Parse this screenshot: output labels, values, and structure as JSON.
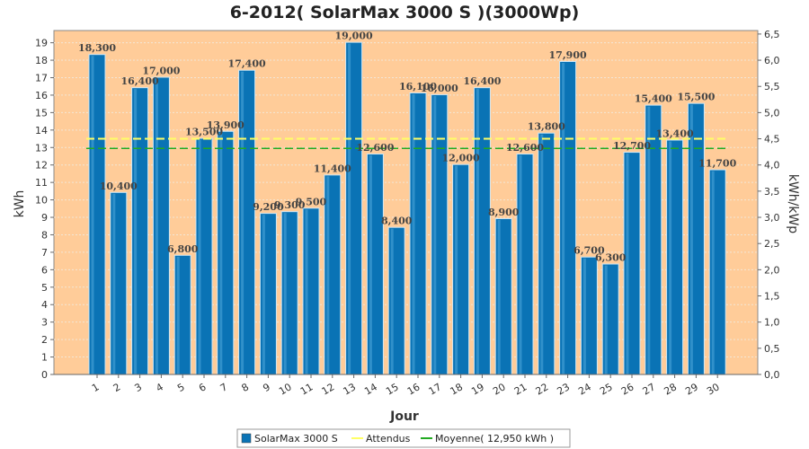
{
  "chart_data": {
    "type": "bar",
    "title": "6-2012( SolarMax 3000 S )(3000Wp)",
    "xlabel": "Jour",
    "ylabel": "kWh",
    "y2label": "kWh/kWp",
    "ylim": [
      0,
      19.7
    ],
    "y2lim": [
      0,
      6.5667
    ],
    "yticks": [
      0,
      1,
      2,
      3,
      4,
      5,
      6,
      7,
      8,
      9,
      10,
      11,
      12,
      13,
      14,
      15,
      16,
      17,
      18,
      19
    ],
    "y2ticks": [
      "0,0",
      "0,5",
      "1,0",
      "1,5",
      "2,0",
      "2,5",
      "3,0",
      "3,5",
      "4,0",
      "4,5",
      "5,0",
      "5,5",
      "6,0",
      "6,5"
    ],
    "categories": [
      "1",
      "2",
      "3",
      "4",
      "5",
      "6",
      "7",
      "8",
      "9",
      "10",
      "11",
      "12",
      "13",
      "14",
      "15",
      "16",
      "17",
      "18",
      "19",
      "20",
      "21",
      "22",
      "23",
      "24",
      "25",
      "26",
      "27",
      "28",
      "29",
      "30"
    ],
    "series": [
      {
        "name": "SolarMax 3000 S",
        "values": [
          18.3,
          10.4,
          16.4,
          17.0,
          6.8,
          13.5,
          13.9,
          17.4,
          9.2,
          9.3,
          9.5,
          11.4,
          19.0,
          12.6,
          8.4,
          16.1,
          16.0,
          12.0,
          16.4,
          8.9,
          12.6,
          13.8,
          17.9,
          6.7,
          6.3,
          12.7,
          15.4,
          13.4,
          15.5,
          11.7
        ],
        "labels": [
          "18,300",
          "10,400",
          "16,400",
          "17,000",
          "6,800",
          "13,500",
          "13,900",
          "17,400",
          "9,200",
          "9,300",
          "9,500",
          "11,400",
          "19,000",
          "12,600",
          "8,400",
          "16,100",
          "16,000",
          "12,000",
          "16,400",
          "8,900",
          "12,600",
          "13,800",
          "17,900",
          "6,700",
          "6,300",
          "12,700",
          "15,400",
          "13,400",
          "15,500",
          "11,700"
        ]
      }
    ],
    "expected": {
      "name": "Attendus",
      "value": 13.5,
      "color": "#ffff66"
    },
    "average": {
      "name": "Moyenne( 12,950 kWh )",
      "value": 12.95,
      "color": "#22aa22"
    },
    "grid": true,
    "legend_position": "bottom",
    "colors": {
      "bar": "#0a73b5",
      "plot_bg": "#ffcc99",
      "grid": "#f2e6d6"
    }
  }
}
